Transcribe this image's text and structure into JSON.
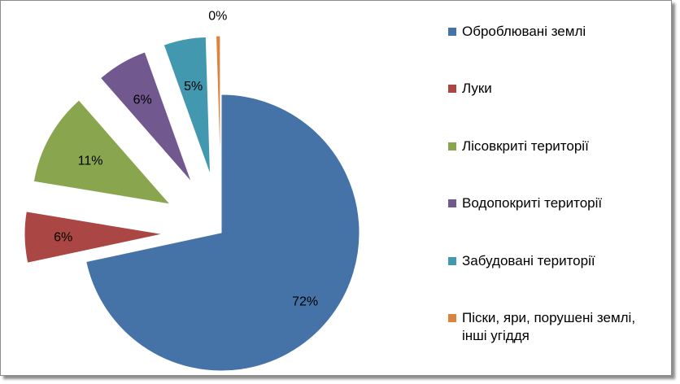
{
  "chart_data": {
    "type": "pie",
    "exploded": true,
    "categories": [
      "Оброблювані землі",
      "Луки",
      "Лісовкриті території",
      "Водопокриті території",
      "Забудовані території",
      "Піски, яри, порушені землі, інші угіддя"
    ],
    "values": [
      72,
      6,
      11,
      6,
      5,
      0.5
    ],
    "data_labels": [
      "72%",
      "6%",
      "11%",
      "6%",
      "5%",
      "0%"
    ],
    "colors": [
      "#4572A7",
      "#AA4643",
      "#89A54E",
      "#71588F",
      "#4198AF",
      "#DB843D"
    ],
    "legend_position": "right",
    "title": ""
  }
}
